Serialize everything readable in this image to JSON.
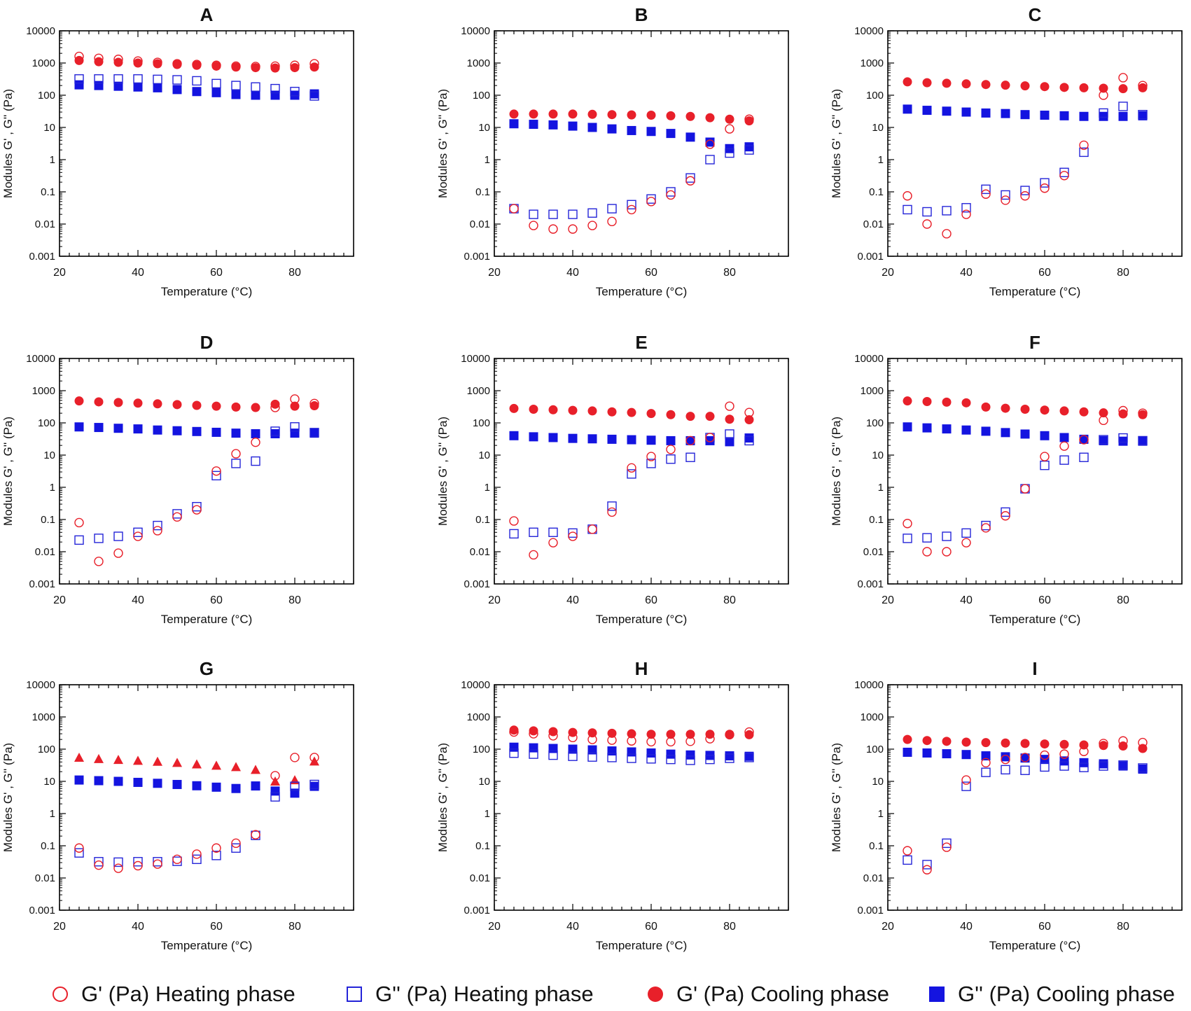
{
  "colors": {
    "heating_g1": "#e8202a",
    "heating_g2": "#2424d8",
    "cooling_g1": "#e8202a",
    "cooling_g2": "#1414e0",
    "axis": "#000000"
  },
  "legend": [
    {
      "label": "G' (Pa) Heating phase",
      "marker": "open-circle",
      "color": "#e8202a"
    },
    {
      "label": "G'' (Pa) Heating phase",
      "marker": "open-square",
      "color": "#2424d8"
    },
    {
      "label": "G' (Pa) Cooling phase",
      "marker": "filled-circle",
      "color": "#e8202a"
    },
    {
      "label": "G'' (Pa) Cooling phase",
      "marker": "filled-square",
      "color": "#1414e0"
    }
  ],
  "chart_data": [
    {
      "panel": "A",
      "type": "scatter",
      "title": "A",
      "xlabel": "Temperature (°C)",
      "ylabel": "Modules G' , G'' (Pa)",
      "xlim": [
        20,
        95
      ],
      "ylim": [
        0.001,
        10000
      ],
      "yscale": "log",
      "x_ticks": [
        20,
        40,
        60,
        80
      ],
      "y_ticks": [
        "0.001",
        "0.01",
        "0.1",
        "1",
        "10",
        "100",
        "1000",
        "10000"
      ],
      "x": [
        25,
        30,
        35,
        40,
        45,
        50,
        55,
        60,
        65,
        70,
        75,
        80,
        85
      ],
      "series": [
        {
          "name": "G' (Pa) Heating phase",
          "marker": "open-circle",
          "values": [
            1600,
            1400,
            1300,
            1150,
            1050,
            950,
            900,
            850,
            800,
            780,
            800,
            850,
            950
          ]
        },
        {
          "name": "G'' (Pa) Heating phase",
          "marker": "open-square",
          "values": [
            320,
            320,
            320,
            320,
            310,
            300,
            280,
            230,
            200,
            180,
            160,
            130,
            95
          ]
        },
        {
          "name": "G' (Pa) Cooling phase",
          "marker": "filled-circle",
          "values": [
            1200,
            1100,
            1050,
            1000,
            950,
            900,
            850,
            800,
            750,
            720,
            700,
            720,
            750
          ]
        },
        {
          "name": "G'' (Pa) Cooling phase",
          "marker": "filled-square",
          "values": [
            210,
            200,
            190,
            180,
            170,
            150,
            130,
            120,
            105,
            100,
            100,
            100,
            110
          ]
        }
      ]
    },
    {
      "panel": "B",
      "type": "scatter",
      "title": "B",
      "xlabel": "Temperature (°C)",
      "ylabel": "Modules G' , G'' (Pa)",
      "xlim": [
        20,
        95
      ],
      "ylim": [
        0.001,
        10000
      ],
      "yscale": "log",
      "x_ticks": [
        20,
        40,
        60,
        80
      ],
      "y_ticks": [
        "0.001",
        "0.01",
        "0.1",
        "1",
        "10",
        "100",
        "1000",
        "10000"
      ],
      "x": [
        25,
        30,
        35,
        40,
        45,
        50,
        55,
        60,
        65,
        70,
        75,
        80,
        85
      ],
      "series": [
        {
          "name": "G' (Pa) Heating phase",
          "marker": "open-circle",
          "values": [
            0.03,
            0.009,
            0.007,
            0.007,
            0.009,
            0.012,
            0.028,
            0.05,
            0.08,
            0.22,
            3,
            9,
            18
          ]
        },
        {
          "name": "G'' (Pa) Heating phase",
          "marker": "open-square",
          "values": [
            0.03,
            0.02,
            0.02,
            0.02,
            0.022,
            0.03,
            0.04,
            0.06,
            0.1,
            0.27,
            1,
            1.6,
            2
          ]
        },
        {
          "name": "G' (Pa) Cooling phase",
          "marker": "filled-circle",
          "values": [
            26,
            26,
            26,
            26,
            25.5,
            25,
            24.5,
            24,
            23,
            22,
            20,
            18,
            16
          ]
        },
        {
          "name": "G'' (Pa) Cooling phase",
          "marker": "filled-square",
          "values": [
            13,
            12.5,
            12,
            11,
            10,
            9,
            8,
            7.5,
            6.5,
            5,
            3.5,
            2.2,
            2.5
          ]
        }
      ]
    },
    {
      "panel": "C",
      "type": "scatter",
      "title": "C",
      "xlabel": "Temperature (°C)",
      "ylabel": "Modules G' , G'' (Pa)",
      "xlim": [
        20,
        95
      ],
      "ylim": [
        0.001,
        10000
      ],
      "yscale": "log",
      "x_ticks": [
        20,
        40,
        60,
        80
      ],
      "y_ticks": [
        "0.001",
        "0.01",
        "0.1",
        "1",
        "10",
        "100",
        "1000",
        "10000"
      ],
      "x": [
        25,
        30,
        35,
        40,
        45,
        50,
        55,
        60,
        65,
        70,
        75,
        80,
        85
      ],
      "series": [
        {
          "name": "G' (Pa) Heating phase",
          "marker": "open-circle",
          "values": [
            0.075,
            0.01,
            0.005,
            0.02,
            0.085,
            0.055,
            0.075,
            0.13,
            0.32,
            2.8,
            100,
            350,
            200
          ]
        },
        {
          "name": "G'' (Pa) Heating phase",
          "marker": "open-square",
          "values": [
            0.028,
            0.024,
            0.026,
            0.032,
            0.12,
            0.08,
            0.11,
            0.19,
            0.4,
            1.7,
            28,
            45,
            25
          ]
        },
        {
          "name": "G' (Pa) Cooling phase",
          "marker": "filled-circle",
          "values": [
            260,
            245,
            235,
            225,
            215,
            205,
            195,
            185,
            175,
            170,
            165,
            160,
            170
          ]
        },
        {
          "name": "G'' (Pa) Cooling phase",
          "marker": "filled-square",
          "values": [
            37,
            34,
            32,
            30,
            28,
            27,
            25,
            24,
            23,
            22,
            22,
            22,
            23
          ]
        }
      ]
    },
    {
      "panel": "D",
      "type": "scatter",
      "title": "D",
      "xlabel": "Temperature (°C)",
      "ylabel": "Modules G' , G'' (Pa)",
      "xlim": [
        20,
        95
      ],
      "ylim": [
        0.001,
        10000
      ],
      "yscale": "log",
      "x_ticks": [
        20,
        40,
        60,
        80
      ],
      "y_ticks": [
        "0.001",
        "0.01",
        "0.1",
        "1",
        "10",
        "100",
        "1000",
        "10000"
      ],
      "x": [
        25,
        30,
        35,
        40,
        45,
        50,
        55,
        60,
        65,
        70,
        75,
        80,
        85
      ],
      "series": [
        {
          "name": "G' (Pa) Heating phase",
          "marker": "open-circle",
          "values": [
            0.08,
            0.005,
            0.009,
            0.03,
            0.045,
            0.12,
            0.2,
            3.2,
            11,
            25,
            300,
            550,
            400
          ]
        },
        {
          "name": "G'' (Pa) Heating phase",
          "marker": "open-square",
          "values": [
            0.023,
            0.026,
            0.03,
            0.04,
            0.065,
            0.15,
            0.25,
            2.3,
            5.5,
            6.5,
            55,
            75,
            50
          ]
        },
        {
          "name": "G' (Pa) Cooling phase",
          "marker": "filled-circle",
          "values": [
            480,
            450,
            430,
            410,
            390,
            370,
            350,
            330,
            310,
            300,
            380,
            330,
            340
          ]
        },
        {
          "name": "G'' (Pa) Cooling phase",
          "marker": "filled-square",
          "values": [
            75,
            72,
            68,
            65,
            60,
            57,
            54,
            51,
            48,
            46,
            46,
            48,
            48
          ]
        }
      ]
    },
    {
      "panel": "E",
      "type": "scatter",
      "title": "E",
      "xlabel": "Temperature (°C)",
      "ylabel": "Modules G' , G'' (Pa)",
      "xlim": [
        20,
        95
      ],
      "ylim": [
        0.001,
        10000
      ],
      "yscale": "log",
      "x_ticks": [
        20,
        40,
        60,
        80
      ],
      "y_ticks": [
        "0.001",
        "0.01",
        "0.1",
        "1",
        "10",
        "100",
        "1000",
        "10000"
      ],
      "x": [
        25,
        30,
        35,
        40,
        45,
        50,
        55,
        60,
        65,
        70,
        75,
        80,
        85
      ],
      "series": [
        {
          "name": "G' (Pa) Heating phase",
          "marker": "open-circle",
          "values": [
            0.09,
            0.008,
            0.019,
            0.03,
            0.05,
            0.17,
            4,
            9,
            15,
            28,
            35,
            330,
            210
          ]
        },
        {
          "name": "G'' (Pa) Heating phase",
          "marker": "open-square",
          "values": [
            0.036,
            0.04,
            0.04,
            0.038,
            0.05,
            0.26,
            2.6,
            5.5,
            7.5,
            8.5,
            35,
            45,
            28
          ]
        },
        {
          "name": "G' (Pa) Cooling phase",
          "marker": "filled-circle",
          "values": [
            280,
            265,
            255,
            245,
            235,
            220,
            210,
            195,
            180,
            160,
            160,
            130,
            125
          ]
        },
        {
          "name": "G'' (Pa) Cooling phase",
          "marker": "filled-square",
          "values": [
            40,
            37,
            35,
            33,
            32,
            31,
            30,
            29,
            28,
            28,
            28,
            26,
            34
          ]
        }
      ]
    },
    {
      "panel": "F",
      "type": "scatter",
      "title": "F",
      "xlabel": "Temperature (°C)",
      "ylabel": "Modules G' , G'' (Pa)",
      "xlim": [
        20,
        95
      ],
      "ylim": [
        0.001,
        10000
      ],
      "yscale": "log",
      "x_ticks": [
        20,
        40,
        60,
        80
      ],
      "y_ticks": [
        "0.001",
        "0.01",
        "0.1",
        "1",
        "10",
        "100",
        "1000",
        "10000"
      ],
      "x": [
        25,
        30,
        35,
        40,
        45,
        50,
        55,
        60,
        65,
        70,
        75,
        80,
        85
      ],
      "series": [
        {
          "name": "G' (Pa) Heating phase",
          "marker": "open-circle",
          "values": [
            0.075,
            0.01,
            0.01,
            0.019,
            0.055,
            0.13,
            0.9,
            9,
            19,
            30,
            120,
            240,
            200
          ]
        },
        {
          "name": "G'' (Pa) Heating phase",
          "marker": "open-square",
          "values": [
            0.026,
            0.027,
            0.03,
            0.038,
            0.065,
            0.17,
            0.9,
            4.8,
            7,
            8.5,
            30,
            34,
            28
          ]
        },
        {
          "name": "G' (Pa) Cooling phase",
          "marker": "filled-circle",
          "values": [
            480,
            460,
            440,
            420,
            310,
            285,
            265,
            250,
            235,
            220,
            205,
            190,
            180
          ]
        },
        {
          "name": "G'' (Pa) Cooling phase",
          "marker": "filled-square",
          "values": [
            75,
            70,
            65,
            60,
            55,
            50,
            45,
            40,
            35,
            31,
            28,
            27,
            27
          ]
        }
      ]
    },
    {
      "panel": "G",
      "type": "scatter",
      "title": "G",
      "xlabel": "Temperature (°C)",
      "ylabel": "Modules G' , G'' (Pa)",
      "xlim": [
        20,
        95
      ],
      "ylim": [
        0.001,
        10000
      ],
      "yscale": "log",
      "x_ticks": [
        20,
        40,
        60,
        80
      ],
      "y_ticks": [
        "0.001",
        "0.01",
        "0.1",
        "1",
        "10",
        "100",
        "1000",
        "10000"
      ],
      "x": [
        25,
        30,
        35,
        40,
        45,
        50,
        55,
        60,
        65,
        70,
        75,
        80,
        85
      ],
      "series": [
        {
          "name": "G' (Pa) Heating phase",
          "marker": "open-circle",
          "values": [
            0.085,
            0.025,
            0.02,
            0.024,
            0.027,
            0.038,
            0.055,
            0.085,
            0.12,
            0.22,
            15,
            55,
            55
          ]
        },
        {
          "name": "G'' (Pa) Heating phase",
          "marker": "open-square",
          "values": [
            0.06,
            0.032,
            0.031,
            0.032,
            0.032,
            0.033,
            0.038,
            0.05,
            0.085,
            0.21,
            3.3,
            7,
            8
          ]
        },
        {
          "name": "G' (Pa) Cooling phase",
          "marker": "filled-triangle",
          "values": [
            55,
            50,
            47,
            44,
            41,
            38,
            34,
            31,
            28,
            23,
            10,
            11,
            42
          ]
        },
        {
          "name": "G'' (Pa) Cooling phase",
          "marker": "filled-square",
          "values": [
            11,
            10.5,
            10,
            9.3,
            8.7,
            8,
            7.3,
            6.6,
            6,
            7.2,
            5,
            4.3,
            7
          ]
        }
      ]
    },
    {
      "panel": "H",
      "type": "scatter",
      "title": "H",
      "xlabel": "Temperature (°C)",
      "ylabel": "Modules G' , G'' (Pa)",
      "xlim": [
        20,
        95
      ],
      "ylim": [
        0.001,
        10000
      ],
      "yscale": "log",
      "x_ticks": [
        20,
        40,
        60,
        80
      ],
      "y_ticks": [
        "0.001",
        "0.01",
        "0.1",
        "1",
        "10",
        "100",
        "1000",
        "10000"
      ],
      "x": [
        25,
        30,
        35,
        40,
        45,
        50,
        55,
        60,
        65,
        70,
        75,
        80,
        85
      ],
      "series": [
        {
          "name": "G' (Pa) Heating phase",
          "marker": "open-circle",
          "values": [
            340,
            300,
            260,
            230,
            200,
            190,
            180,
            170,
            170,
            175,
            210,
            280,
            340
          ]
        },
        {
          "name": "G'' (Pa) Heating phase",
          "marker": "open-square",
          "values": [
            75,
            70,
            65,
            60,
            57,
            55,
            52,
            50,
            48,
            45,
            48,
            52,
            55
          ]
        },
        {
          "name": "G' (Pa) Cooling phase",
          "marker": "filled-circle",
          "values": [
            390,
            370,
            350,
            330,
            320,
            310,
            300,
            290,
            290,
            290,
            290,
            290,
            280
          ]
        },
        {
          "name": "G'' (Pa) Cooling phase",
          "marker": "filled-square",
          "values": [
            115,
            110,
            105,
            100,
            95,
            88,
            82,
            76,
            70,
            66,
            64,
            62,
            60
          ]
        }
      ]
    },
    {
      "panel": "I",
      "type": "scatter",
      "title": "I",
      "xlabel": "Temperature (°C)",
      "ylabel": "Modules G' , G'' (Pa)",
      "xlim": [
        20,
        95
      ],
      "ylim": [
        0.001,
        10000
      ],
      "yscale": "log",
      "x_ticks": [
        20,
        40,
        60,
        80
      ],
      "y_ticks": [
        "0.001",
        "0.01",
        "0.1",
        "1",
        "10",
        "100",
        "1000",
        "10000"
      ],
      "x": [
        25,
        30,
        35,
        40,
        45,
        50,
        55,
        60,
        65,
        70,
        75,
        80,
        85
      ],
      "series": [
        {
          "name": "G' (Pa) Heating phase",
          "marker": "open-circle",
          "values": [
            0.07,
            0.018,
            0.09,
            11,
            38,
            48,
            55,
            65,
            70,
            85,
            150,
            180,
            160
          ]
        },
        {
          "name": "G'' (Pa) Heating phase",
          "marker": "open-square",
          "values": [
            0.036,
            0.026,
            0.12,
            7,
            19,
            23,
            22,
            28,
            30,
            27,
            30,
            32,
            26
          ]
        },
        {
          "name": "G' (Pa) Cooling phase",
          "marker": "filled-circle",
          "values": [
            200,
            185,
            175,
            165,
            160,
            155,
            150,
            145,
            140,
            135,
            130,
            125,
            105
          ]
        },
        {
          "name": "G'' (Pa) Cooling phase",
          "marker": "filled-square",
          "values": [
            80,
            76,
            72,
            68,
            62,
            58,
            53,
            48,
            43,
            38,
            35,
            30,
            24
          ]
        }
      ]
    }
  ]
}
